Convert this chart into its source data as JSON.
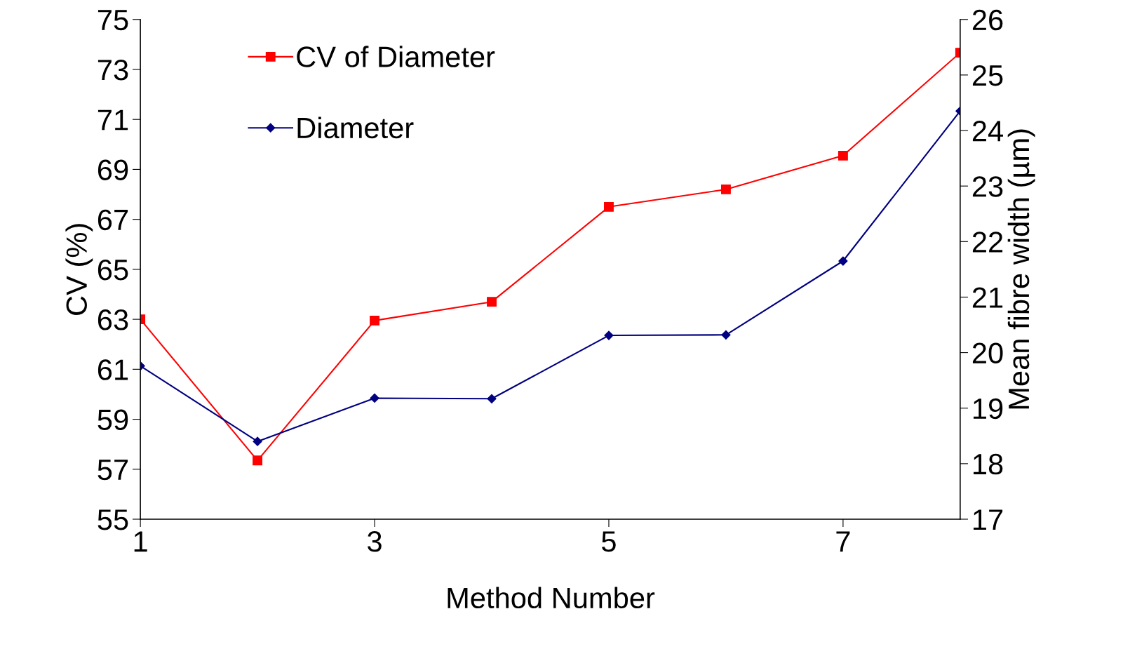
{
  "chart_data": {
    "type": "line",
    "xlabel": "Method Number",
    "ylabel": "CV (%)",
    "y2label": "Mean fibre width (µm)",
    "x": [
      1,
      2,
      3,
      4,
      5,
      6,
      7,
      8
    ],
    "series": [
      {
        "name": "CV of Diameter",
        "color": "#ff0000",
        "marker": "square",
        "values": [
          63.0,
          57.35,
          62.95,
          63.7,
          67.5,
          68.2,
          69.55,
          73.67
        ]
      },
      {
        "name": "Diameter",
        "color": "#000080",
        "marker": "diamond",
        "axis": "y2",
        "values": [
          19.76,
          18.4,
          19.18,
          19.17,
          20.31,
          20.32,
          21.65,
          24.35
        ]
      }
    ],
    "xlim": [
      1,
      8
    ],
    "xticks": [
      1,
      3,
      5,
      7
    ],
    "ylim": [
      55,
      75
    ],
    "yticks": [
      55,
      57,
      59,
      61,
      63,
      65,
      67,
      69,
      71,
      73,
      75
    ],
    "y2lim": [
      17,
      26
    ],
    "y2ticks": [
      17,
      18,
      19,
      20,
      21,
      22,
      23,
      24,
      25,
      26
    ],
    "grid": false,
    "legend": "top left",
    "line_style": "solid"
  }
}
